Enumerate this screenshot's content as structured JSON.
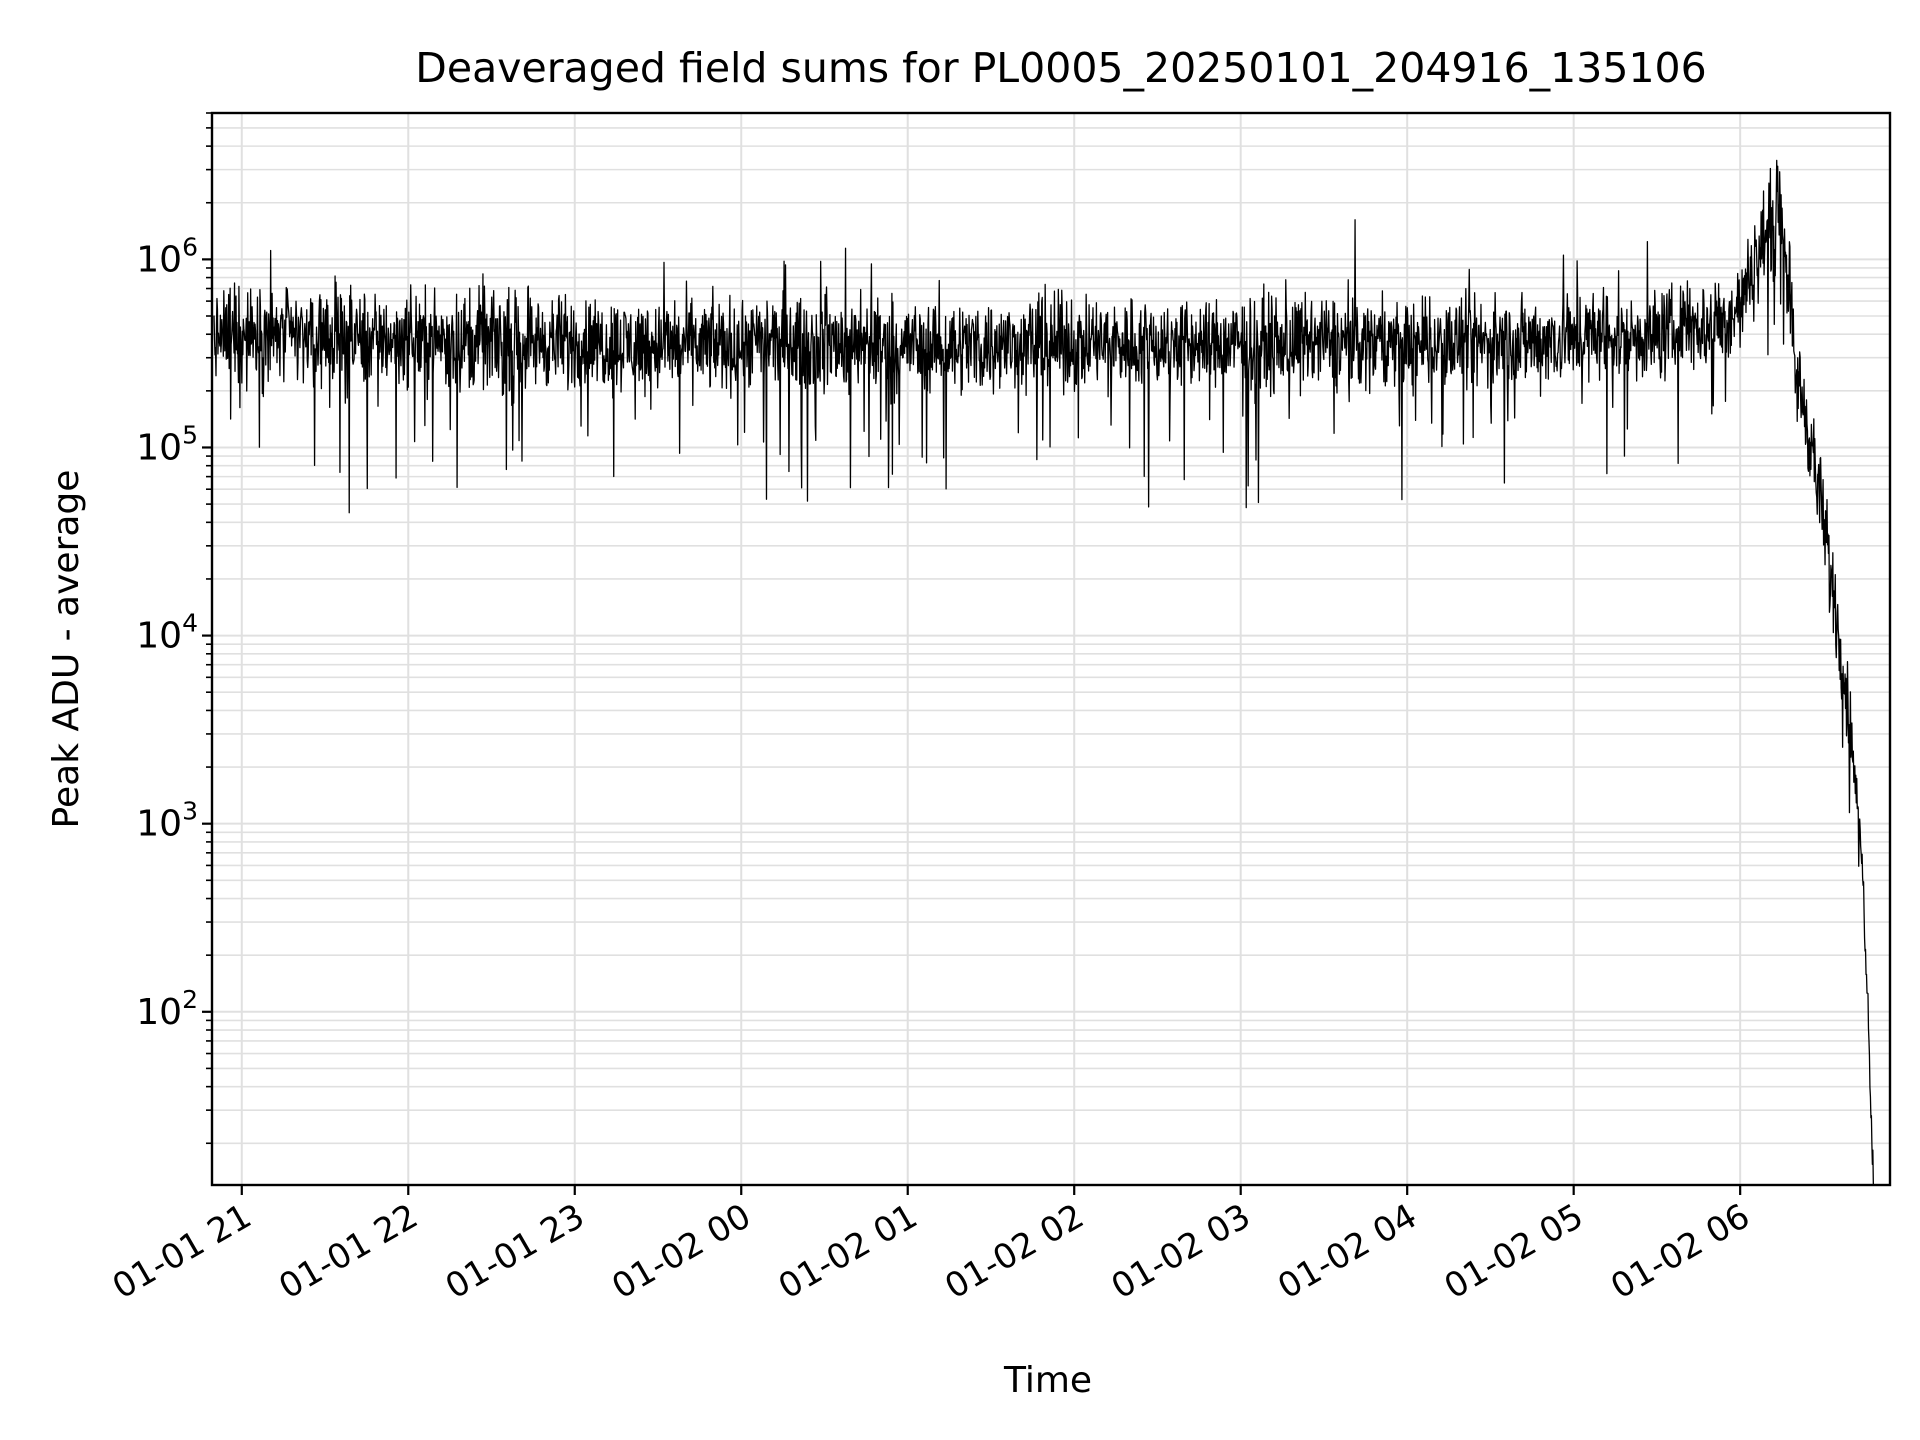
{
  "chart_data": {
    "type": "line",
    "title": "Deaveraged field sums for PL0005_20250101_204916_135106",
    "xlabel": "Time",
    "ylabel": "Peak ADU - average",
    "yscale": "log",
    "ylim": [
      12,
      6000000
    ],
    "xlim": [
      "2025-01-01 20:49:16",
      "2025-01-02 06:54:00"
    ],
    "grid": "major and minor",
    "line_color": "#000000",
    "grid_color": "#e0e0e0",
    "x_ticks": [
      {
        "t": "2025-01-01 21:00",
        "label": "01-01 21"
      },
      {
        "t": "2025-01-01 22:00",
        "label": "01-01 22"
      },
      {
        "t": "2025-01-01 23:00",
        "label": "01-01 23"
      },
      {
        "t": "2025-01-02 00:00",
        "label": "01-02 00"
      },
      {
        "t": "2025-01-02 01:00",
        "label": "01-02 01"
      },
      {
        "t": "2025-01-02 02:00",
        "label": "01-02 02"
      },
      {
        "t": "2025-01-02 03:00",
        "label": "01-02 03"
      },
      {
        "t": "2025-01-02 04:00",
        "label": "01-02 04"
      },
      {
        "t": "2025-01-02 05:00",
        "label": "01-02 05"
      },
      {
        "t": "2025-01-02 06:00",
        "label": "01-02 06"
      }
    ],
    "y_ticks": [
      {
        "value": 100,
        "base": "10",
        "exp": "2"
      },
      {
        "value": 1000,
        "base": "10",
        "exp": "3"
      },
      {
        "value": 10000,
        "base": "10",
        "exp": "4"
      },
      {
        "value": 100000,
        "base": "10",
        "exp": "5"
      },
      {
        "value": 1000000,
        "base": "10",
        "exp": "6"
      }
    ],
    "series": [
      {
        "x": [
          "2025-01-01 20:50",
          "2025-01-01 21:00",
          "2025-01-01 21:30",
          "2025-01-01 22:00",
          "2025-01-01 22:30",
          "2025-01-01 23:00",
          "2025-01-01 23:30",
          "2025-01-02 00:00",
          "2025-01-02 00:30",
          "2025-01-02 01:00",
          "2025-01-02 01:30",
          "2025-01-02 02:00",
          "2025-01-02 02:30",
          "2025-01-02 03:00",
          "2025-01-02 03:30",
          "2025-01-02 04:00",
          "2025-01-02 04:30",
          "2025-01-02 05:00",
          "2025-01-02 05:30",
          "2025-01-02 05:50",
          "2025-01-02 06:00",
          "2025-01-02 06:10",
          "2025-01-02 06:15",
          "2025-01-02 06:20",
          "2025-01-02 06:25",
          "2025-01-02 06:30",
          "2025-01-02 06:35",
          "2025-01-02 06:40",
          "2025-01-02 06:44",
          "2025-01-02 06:46",
          "2025-01-02 06:48"
        ],
        "y": [
          380000,
          400000,
          390000,
          380000,
          370000,
          360000,
          350000,
          350000,
          360000,
          350000,
          350000,
          360000,
          360000,
          350000,
          360000,
          360000,
          360000,
          380000,
          400000,
          450000,
          550000,
          1500000,
          2000000,
          250000,
          120000,
          40000,
          12000,
          3000,
          600,
          120,
          12
        ]
      }
    ]
  }
}
